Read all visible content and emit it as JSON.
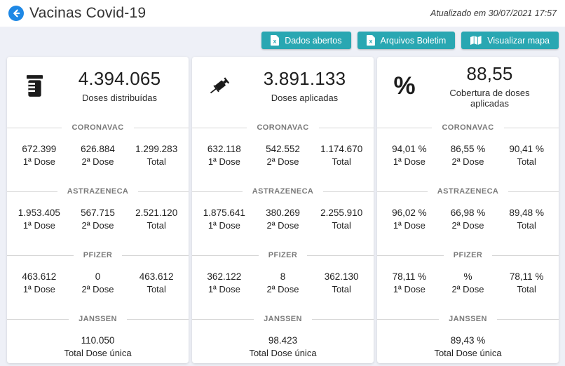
{
  "header": {
    "title": "Vacinas Covid-19",
    "updated": "Atualizado em 30/07/2021 17:57",
    "buttons": [
      {
        "label": "Dados abertos",
        "icon": "file-excel-icon"
      },
      {
        "label": "Arquivos Boletim",
        "icon": "file-excel-icon"
      },
      {
        "label": "Visualizar mapa",
        "icon": "map-icon"
      }
    ]
  },
  "colors": {
    "accent_teal": "#29a7b2",
    "back_button_blue": "#1e88e5",
    "page_background": "#eef0f7",
    "section_label_gray": "#7a7a7a",
    "text_dark": "#212121"
  },
  "cards": [
    {
      "icon": "vial-icon",
      "value": "4.394.065",
      "label": "Doses distribuídas",
      "sections": [
        {
          "name": "CORONAVAC",
          "columns": [
            {
              "value": "672.399",
              "label": "1ª Dose"
            },
            {
              "value": "626.884",
              "label": "2ª Dose"
            },
            {
              "value": "1.299.283",
              "label": "Total"
            }
          ]
        },
        {
          "name": "ASTRAZENECA",
          "columns": [
            {
              "value": "1.953.405",
              "label": "1ª Dose"
            },
            {
              "value": "567.715",
              "label": "2ª Dose"
            },
            {
              "value": "2.521.120",
              "label": "Total"
            }
          ]
        },
        {
          "name": "PFIZER",
          "columns": [
            {
              "value": "463.612",
              "label": "1ª Dose"
            },
            {
              "value": "0",
              "label": "2ª Dose"
            },
            {
              "value": "463.612",
              "label": "Total"
            }
          ]
        },
        {
          "name": "JANSSEN",
          "columns": [
            {
              "value": "110.050",
              "label": "Total Dose única"
            }
          ]
        }
      ]
    },
    {
      "icon": "syringe-icon",
      "value": "3.891.133",
      "label": "Doses aplicadas",
      "sections": [
        {
          "name": "CORONAVAC",
          "columns": [
            {
              "value": "632.118",
              "label": "1ª Dose"
            },
            {
              "value": "542.552",
              "label": "2ª Dose"
            },
            {
              "value": "1.174.670",
              "label": "Total"
            }
          ]
        },
        {
          "name": "ASTRAZENECA",
          "columns": [
            {
              "value": "1.875.641",
              "label": "1ª Dose"
            },
            {
              "value": "380.269",
              "label": "2ª Dose"
            },
            {
              "value": "2.255.910",
              "label": "Total"
            }
          ]
        },
        {
          "name": "PFIZER",
          "columns": [
            {
              "value": "362.122",
              "label": "1ª Dose"
            },
            {
              "value": "8",
              "label": "2ª Dose"
            },
            {
              "value": "362.130",
              "label": "Total"
            }
          ]
        },
        {
          "name": "JANSSEN",
          "columns": [
            {
              "value": "98.423",
              "label": "Total Dose única"
            }
          ]
        }
      ]
    },
    {
      "icon": "percent-icon",
      "value": "88,55",
      "label": "Cobertura de doses aplicadas",
      "sections": [
        {
          "name": "CORONAVAC",
          "columns": [
            {
              "value": "94,01 %",
              "label": "1ª Dose"
            },
            {
              "value": "86,55 %",
              "label": "2ª Dose"
            },
            {
              "value": "90,41 %",
              "label": "Total"
            }
          ]
        },
        {
          "name": "ASTRAZENECA",
          "columns": [
            {
              "value": "96,02 %",
              "label": "1ª Dose"
            },
            {
              "value": "66,98 %",
              "label": "2ª Dose"
            },
            {
              "value": "89,48 %",
              "label": "Total"
            }
          ]
        },
        {
          "name": "PFIZER",
          "columns": [
            {
              "value": "78,11 %",
              "label": "1ª Dose"
            },
            {
              "value": "%",
              "label": "2ª Dose"
            },
            {
              "value": "78,11 %",
              "label": "Total"
            }
          ]
        },
        {
          "name": "JANSSEN",
          "columns": [
            {
              "value": "89,43 %",
              "label": "Total Dose única"
            }
          ]
        }
      ]
    }
  ]
}
